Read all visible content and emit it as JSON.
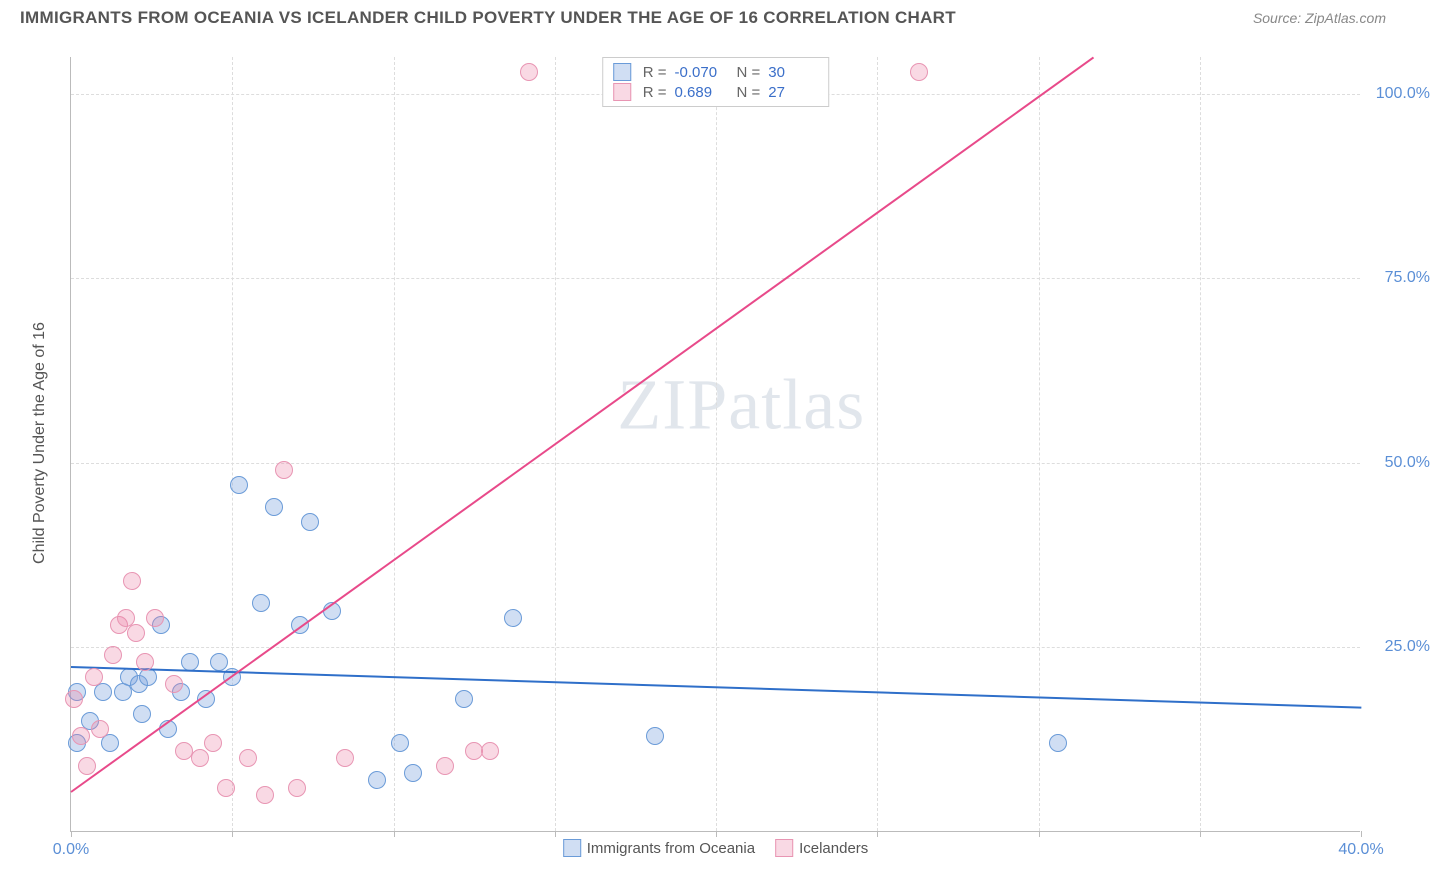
{
  "title": "IMMIGRANTS FROM OCEANIA VS ICELANDER CHILD POVERTY UNDER THE AGE OF 16 CORRELATION CHART",
  "source": "Source: ZipAtlas.com",
  "watermark": "ZIPatlas",
  "chart": {
    "type": "scatter",
    "y_axis_label": "Child Poverty Under the Age of 16",
    "background_color": "#ffffff",
    "grid_color": "#dddddd",
    "axis_color": "#bbbbbb",
    "x_range": [
      0,
      40
    ],
    "y_range": [
      0,
      105
    ],
    "x_ticks": [
      0,
      5,
      10,
      15,
      20,
      25,
      30,
      35,
      40
    ],
    "x_tick_labels": [
      "0.0%",
      "",
      "",
      "",
      "",
      "",
      "",
      "",
      "40.0%"
    ],
    "y_ticks": [
      25,
      50,
      75,
      100
    ],
    "y_tick_labels": [
      "25.0%",
      "50.0%",
      "75.0%",
      "100.0%"
    ],
    "tick_label_color": "#5b8fd6",
    "axis_label_color": "#555555",
    "series": [
      {
        "name": "Immigrants from Oceania",
        "fill": "rgba(120,160,220,0.35)",
        "stroke": "#6a9bd8",
        "marker_radius": 9,
        "trend": {
          "x1": 0,
          "y1": 22.5,
          "x2": 40,
          "y2": 17.0,
          "color": "#2f6fc9",
          "width": 2
        },
        "R": "-0.070",
        "N": "30",
        "points": [
          [
            0.2,
            19
          ],
          [
            0.2,
            12
          ],
          [
            0.6,
            15
          ],
          [
            1.0,
            19
          ],
          [
            1.2,
            12
          ],
          [
            1.6,
            19
          ],
          [
            1.8,
            21
          ],
          [
            2.1,
            20
          ],
          [
            2.4,
            21
          ],
          [
            2.2,
            16
          ],
          [
            2.8,
            28
          ],
          [
            3.0,
            14
          ],
          [
            3.4,
            19
          ],
          [
            3.7,
            23
          ],
          [
            4.2,
            18
          ],
          [
            4.6,
            23
          ],
          [
            5.0,
            21
          ],
          [
            5.2,
            47
          ],
          [
            5.9,
            31
          ],
          [
            6.3,
            44
          ],
          [
            7.1,
            28
          ],
          [
            7.4,
            42
          ],
          [
            8.1,
            30
          ],
          [
            9.5,
            7
          ],
          [
            10.2,
            12
          ],
          [
            10.6,
            8
          ],
          [
            12.2,
            18
          ],
          [
            13.7,
            29
          ],
          [
            18.1,
            13
          ],
          [
            30.6,
            12
          ]
        ]
      },
      {
        "name": "Icelanders",
        "fill": "rgba(235,130,165,0.30)",
        "stroke": "#e895b3",
        "marker_radius": 9,
        "trend": {
          "x1": 0,
          "y1": 5.5,
          "x2": 31.7,
          "y2": 105,
          "color": "#e84a8a",
          "width": 2
        },
        "R": "0.689",
        "N": "27",
        "points": [
          [
            0.1,
            18
          ],
          [
            0.3,
            13
          ],
          [
            0.5,
            9
          ],
          [
            0.7,
            21
          ],
          [
            0.9,
            14
          ],
          [
            1.3,
            24
          ],
          [
            1.5,
            28
          ],
          [
            1.7,
            29
          ],
          [
            2.0,
            27
          ],
          [
            1.9,
            34
          ],
          [
            2.3,
            23
          ],
          [
            2.6,
            29
          ],
          [
            3.2,
            20
          ],
          [
            3.5,
            11
          ],
          [
            4.0,
            10
          ],
          [
            4.4,
            12
          ],
          [
            4.8,
            6
          ],
          [
            5.5,
            10
          ],
          [
            6.0,
            5
          ],
          [
            6.6,
            49
          ],
          [
            7.0,
            6
          ],
          [
            8.5,
            10
          ],
          [
            11.6,
            9
          ],
          [
            12.5,
            11
          ],
          [
            13.0,
            11
          ],
          [
            14.2,
            103
          ],
          [
            26.3,
            103
          ]
        ]
      }
    ]
  },
  "legend_top": {
    "R_label": "R =",
    "N_label": "N ="
  },
  "legend_bottom": {
    "series1_label": "Immigrants from Oceania",
    "series2_label": "Icelanders"
  }
}
